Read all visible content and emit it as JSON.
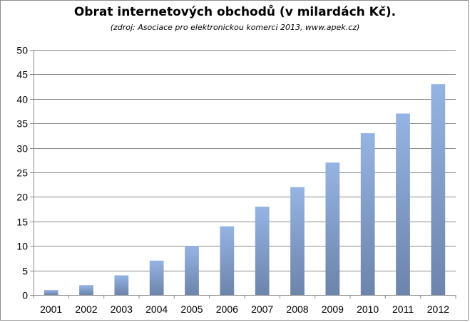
{
  "chart_data": {
    "type": "bar",
    "title": "Obrat internetových obchodů  (v milardách Kč).",
    "subtitle": "(zdroj: Asociace pro elektronickou komerci 2013, www.apek.cz)",
    "categories": [
      "2001",
      "2002",
      "2003",
      "2004",
      "2005",
      "2006",
      "2007",
      "2008",
      "2009",
      "2010",
      "2011",
      "2012"
    ],
    "values": [
      1,
      2,
      4,
      7,
      10,
      14,
      18,
      22,
      27,
      33,
      37,
      43
    ],
    "ylim": [
      0,
      50
    ],
    "yticks": [
      0,
      5,
      10,
      15,
      20,
      25,
      30,
      35,
      40,
      45,
      50
    ],
    "xlabel": "",
    "ylabel": "",
    "grid": true,
    "legend": "none",
    "colors": {
      "bar_top": "#95b3e3",
      "bar_bottom": "#6d84ab",
      "grid": "#8a8a8a",
      "axis": "#8a8a8a"
    }
  }
}
